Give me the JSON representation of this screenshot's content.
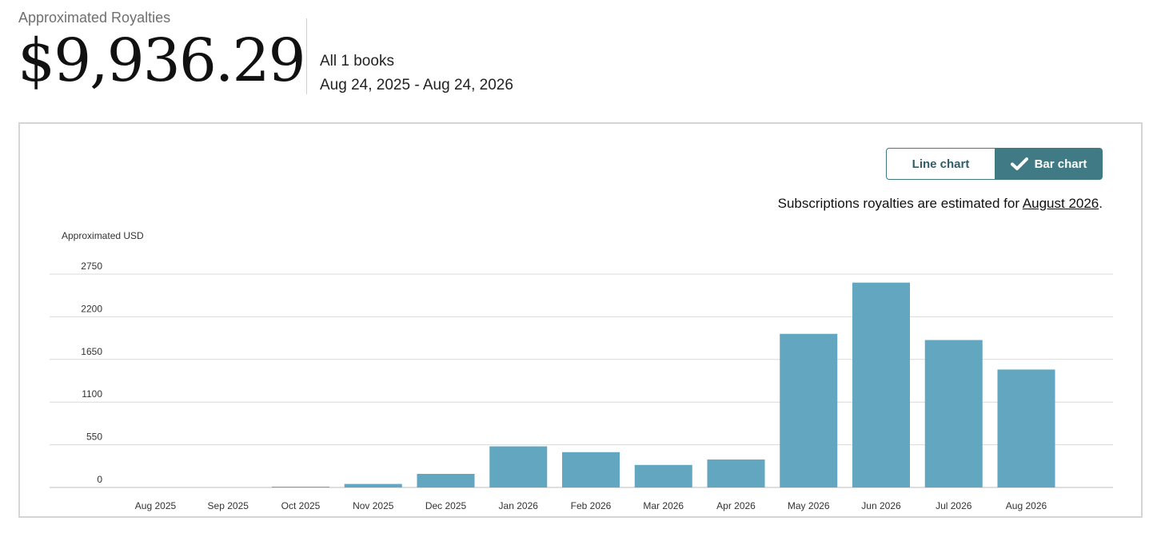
{
  "summary": {
    "label": "Approximated Royalties",
    "total": "$9,936.29",
    "books": "All 1 books",
    "date_range": "Aug 24, 2025 - Aug 24, 2026"
  },
  "chart_controls": {
    "line_label": "Line chart",
    "bar_label": "Bar chart",
    "selected": "bar"
  },
  "note": {
    "prefix": "Subscriptions royalties are estimated for ",
    "link": "August 2026",
    "suffix": "."
  },
  "colors": {
    "bar": "#62a6bf",
    "accent": "#3f7a85",
    "grid": "#d9d9d9"
  },
  "chart_data": {
    "type": "bar",
    "ylabel": "Approximated USD",
    "ylim": [
      0,
      2750
    ],
    "yticks": [
      0,
      550,
      1100,
      1650,
      2200,
      2750
    ],
    "grid": true,
    "categories": [
      "Aug 2025",
      "Sep 2025",
      "Oct 2025",
      "Nov 2025",
      "Dec 2025",
      "Jan 2026",
      "Feb 2026",
      "Mar 2026",
      "Apr 2026",
      "May 2026",
      "Jun 2026",
      "Jul 2026",
      "Aug 2026"
    ],
    "values": [
      0,
      0,
      10,
      45,
      175,
      530,
      455,
      290,
      360,
      1980,
      2640,
      1900,
      1520
    ]
  }
}
